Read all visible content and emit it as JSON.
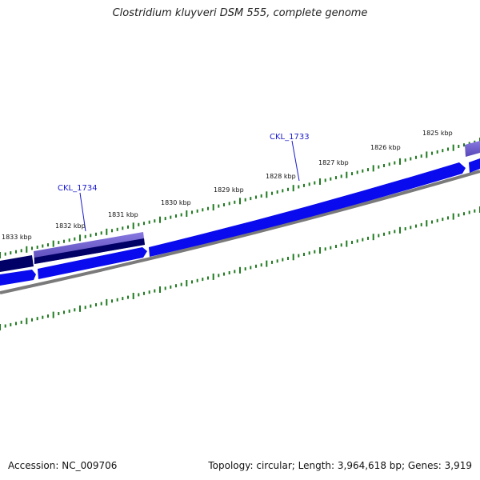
{
  "title": "Clostridium kluyveri DSM 555, complete genome",
  "accession_text": "Accession: NC_009706",
  "summary_text": "Topology: circular; Length: 3,964,618 bp; Genes: 3,919",
  "scale_labels": [
    "1825 kbp",
    "1826 kbp",
    "1827 kbp",
    "1828 kbp",
    "1829 kbp",
    "1830 kbp",
    "1831 kbp",
    "1832 kbp",
    "1833 kbp"
  ],
  "gene_labels": [
    "CKL_1733",
    "CKL_1734"
  ],
  "colors": {
    "ruler": "#1e7a1e",
    "gene_blue": "#0a0aee",
    "gene_dark": "#000066",
    "gene_highlight": "#6a5acd",
    "backbone": "#777777",
    "label_blue": "#1a1acc"
  }
}
